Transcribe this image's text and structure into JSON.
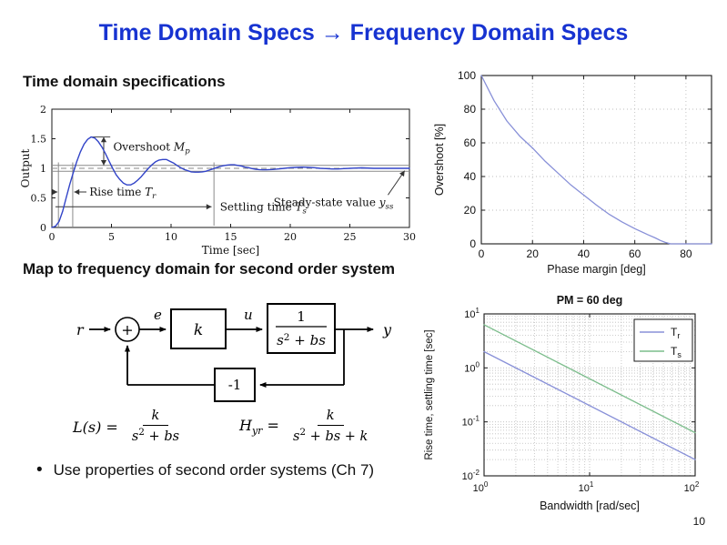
{
  "slide": {
    "title": "Time Domain Specs → Frequency Domain Specs",
    "section1_heading": "Time domain specifications",
    "section2_heading": "Map to frequency domain for second order system",
    "bullet_glyph": "•",
    "bullet_text": "Use properties of second order systems (Ch 7)",
    "page_number": "10"
  },
  "colors": {
    "title_blue": "#1733d1",
    "step_curve_blue": "#3244c8",
    "light_curve_blue": "#8890d8",
    "curve_green": "#7cbd8c",
    "axis_black": "#1a1a1a",
    "marker_gray": "#8a8a8a",
    "grid_dot_gray": "#bdbdbd",
    "annotation_black": "#333333"
  },
  "block_diagram": {
    "input_label": "r",
    "sum_label": "+",
    "error_label": "e",
    "gain_label": "k",
    "control_label": "u",
    "plant_numerator": "1",
    "plant_den_base": "s",
    "plant_den_sup": "2",
    "plant_den_rest": " + bs",
    "output_label": "y",
    "feedback_label": "-1"
  },
  "equations": {
    "loop_lhs": "L(s) =",
    "loop_num": "k",
    "loop_den_base": "s",
    "loop_den_sup": "2",
    "loop_den_rest": " + bs",
    "closed_lhs_base": "H",
    "closed_lhs_sub": "yr",
    "closed_lhs_eq": " =",
    "closed_num": "k",
    "closed_den_base": "s",
    "closed_den_sup": "2",
    "closed_den_rest": " + bs + k"
  },
  "chart_data": [
    {
      "id": "step_response",
      "type": "line",
      "title": "",
      "xlabel": "Time [sec]",
      "ylabel": "Output",
      "xlim": [
        0,
        30
      ],
      "ylim": [
        0,
        2
      ],
      "xticks": [
        0,
        5,
        10,
        15,
        20,
        25,
        30
      ],
      "yticks": [
        0,
        0.5,
        1,
        1.5,
        2
      ],
      "grid": false,
      "series": [
        {
          "name": "step response",
          "color": "#3244c8",
          "x": [
            0,
            0.3,
            0.6,
            0.9,
            1.2,
            1.5,
            1.8,
            2.1,
            2.4,
            2.7,
            3,
            3.3,
            3.6,
            3.9,
            4.2,
            4.5,
            4.8,
            5.1,
            5.4,
            5.7,
            6,
            6.3,
            6.6,
            6.9,
            7.2,
            7.5,
            7.8,
            8.1,
            8.4,
            8.7,
            9,
            9.3,
            9.6,
            9.9,
            10.2,
            10.5,
            10.8,
            11.1,
            11.4,
            11.7,
            12,
            12.3,
            12.6,
            12.9,
            13.2,
            13.5,
            13.8,
            14.1,
            14.4,
            14.7,
            15,
            15.3,
            15.6,
            15.9,
            16.2,
            16.5,
            16.8,
            17.1,
            17.4,
            17.7,
            18,
            18.5,
            19,
            19.5,
            20,
            20.5,
            21,
            21.5,
            22,
            22.5,
            23,
            23.5,
            24,
            24.5,
            25,
            25.5,
            26,
            27,
            28,
            29,
            30
          ],
          "y": [
            0,
            0.02,
            0.1,
            0.27,
            0.5,
            0.73,
            0.93,
            1.12,
            1.28,
            1.41,
            1.49,
            1.53,
            1.51,
            1.45,
            1.36,
            1.25,
            1.12,
            1.0,
            0.89,
            0.81,
            0.75,
            0.72,
            0.72,
            0.75,
            0.8,
            0.86,
            0.93,
            1.0,
            1.06,
            1.11,
            1.14,
            1.15,
            1.15,
            1.12,
            1.09,
            1.05,
            1.01,
            0.98,
            0.96,
            0.94,
            0.935,
            0.935,
            0.94,
            0.95,
            0.97,
            0.99,
            1.01,
            1.03,
            1.045,
            1.055,
            1.06,
            1.06,
            1.05,
            1.04,
            1.02,
            1.01,
            0.995,
            0.985,
            0.978,
            0.975,
            0.975,
            0.98,
            0.99,
            1.0,
            1.01,
            1.015,
            1.02,
            1.015,
            1.01,
            1.0,
            0.995,
            0.99,
            0.99,
            0.995,
            1.0,
            1.005,
            1.007,
            1.0,
            1.0,
            1.0,
            1.0
          ]
        }
      ],
      "markers": {
        "rise_window": [
          0.55,
          1.75
        ],
        "settling_time": 13.6,
        "error_band": [
          0.95,
          1.05
        ],
        "final_value": 1.0,
        "peak": {
          "t": 3.3,
          "y": 1.53
        }
      },
      "annotations": {
        "overshoot": {
          "pre": "Overshoot ",
          "var": "M",
          "sub": "p"
        },
        "rise": {
          "pre": "Rise time ",
          "var": "T",
          "sub": "r"
        },
        "settling": {
          "pre": "Settling time ",
          "var": "T",
          "sub": "s"
        },
        "steady": {
          "pre": "Steady-state value ",
          "var": "y",
          "sub": "ss"
        }
      }
    },
    {
      "id": "overshoot_vs_phase_margin",
      "type": "line",
      "title": "",
      "xlabel": "Phase margin [deg]",
      "ylabel": "Overshoot [%]",
      "xlim": [
        0,
        90
      ],
      "ylim": [
        0,
        100
      ],
      "xticks": [
        0,
        20,
        40,
        60,
        80
      ],
      "yticks": [
        0,
        20,
        40,
        60,
        80,
        100
      ],
      "grid": true,
      "series": [
        {
          "name": "overshoot",
          "color": "#8890d8",
          "x": [
            0,
            5,
            10,
            15,
            20,
            25,
            30,
            35,
            40,
            45,
            50,
            55,
            60,
            65,
            68,
            70,
            72,
            74,
            78,
            82,
            86,
            90
          ],
          "y": [
            100,
            85,
            73,
            64,
            57,
            49,
            42,
            35,
            29,
            23,
            17.5,
            13,
            9,
            5.5,
            3.5,
            2,
            0.8,
            0,
            0,
            0,
            0,
            0
          ]
        }
      ]
    },
    {
      "id": "rise_settle_vs_bandwidth",
      "type": "line",
      "title": "PM = 60 deg",
      "xlabel": "Bandwidth [rad/sec]",
      "ylabel": "Rise time, settling time [sec]",
      "xscale": "log",
      "yscale": "log",
      "xlim": [
        1,
        100
      ],
      "ylim": [
        0.01,
        10
      ],
      "xtick_exponents": [
        0,
        1,
        2
      ],
      "ytick_exponents": [
        1,
        0,
        -1,
        -2
      ],
      "grid": true,
      "legend_position": "upper right",
      "legend": [
        {
          "base": "T",
          "sub": "r"
        },
        {
          "base": "T",
          "sub": "s"
        }
      ],
      "series": [
        {
          "name": "Tr",
          "color": "#8890d8",
          "x": [
            1,
            100
          ],
          "y": [
            2,
            0.02
          ]
        },
        {
          "name": "Ts",
          "color": "#7cbd8c",
          "x": [
            1,
            100
          ],
          "y": [
            6.3,
            0.063
          ]
        }
      ]
    }
  ]
}
